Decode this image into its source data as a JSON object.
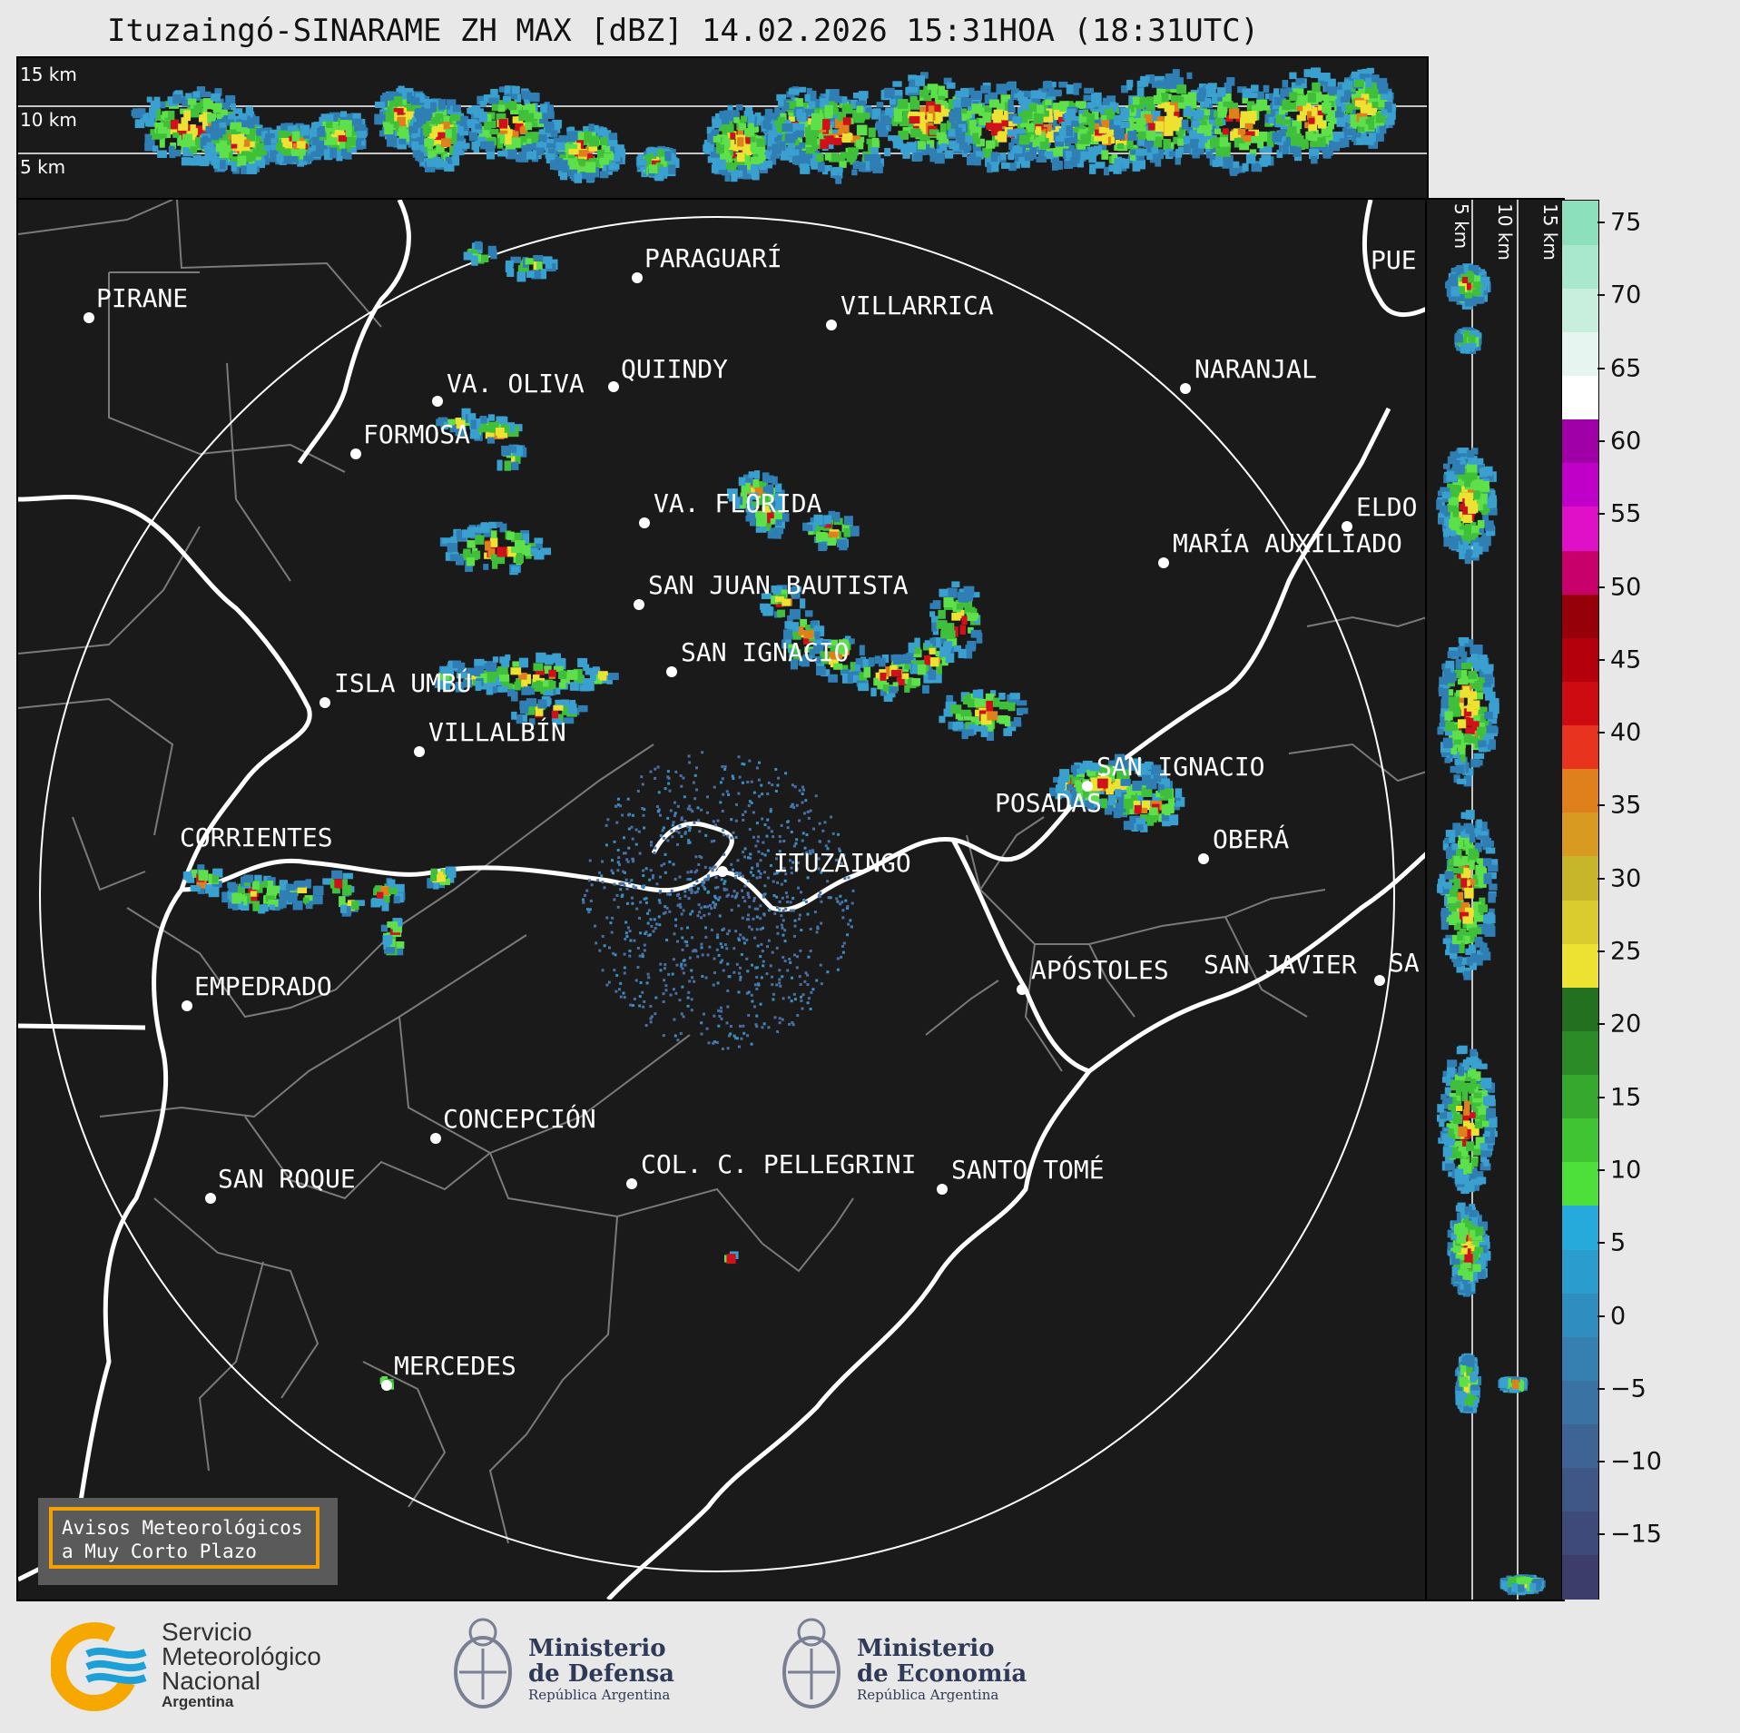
{
  "title": "Ituzaingó-SINARAME ZH MAX [dBZ] 14.02.2026 15:31HOA (18:31UTC)",
  "top_panel": {
    "height_labels": [
      "15 km",
      "10 km",
      "5 km"
    ]
  },
  "side_panel": {
    "height_labels": [
      "5 km",
      "10 km",
      "15 km"
    ]
  },
  "colorbar": {
    "ticks": [
      "75",
      "70",
      "65",
      "60",
      "55",
      "50",
      "45",
      "40",
      "35",
      "30",
      "25",
      "20",
      "15",
      "10",
      "5",
      "0",
      "−5",
      "−10",
      "−15"
    ],
    "colors": [
      "#3d3d6b",
      "#3e4a79",
      "#3f5787",
      "#3d6495",
      "#3a72a3",
      "#3580b1",
      "#2f8ebf",
      "#2a9ccd",
      "#26aadb",
      "#4ee03a",
      "#40c433",
      "#35a82d",
      "#2b8c27",
      "#237021",
      "#ede232",
      "#dacc2e",
      "#c7b62a",
      "#d99a22",
      "#e0801c",
      "#e8331e",
      "#cf0b12",
      "#b4000c",
      "#960008",
      "#c8006b",
      "#e010c8",
      "#c000c8",
      "#a000a8",
      "#ffffff",
      "#e6f5ef",
      "#c8efdd",
      "#a9e8cc",
      "#8de0bc"
    ]
  },
  "map": {
    "range_ring": "on",
    "cities": [
      {
        "name": "PARAGUARÍ"
      },
      {
        "name": "VILLARRICA"
      },
      {
        "name": "PIRANE"
      },
      {
        "name": "QUIINDY"
      },
      {
        "name": "VA. OLIVA"
      },
      {
        "name": "NARANJAL"
      },
      {
        "name": "FORMOSA"
      },
      {
        "name": "PUE"
      },
      {
        "name": "VA. FLORIDA"
      },
      {
        "name": "ELDO"
      },
      {
        "name": "MARÍA AUXILIADO"
      },
      {
        "name": "SAN JUAN BAUTISTA"
      },
      {
        "name": "SAN IGNACIO"
      },
      {
        "name": "ISLA UMBÚ"
      },
      {
        "name": "VILLALBÍN"
      },
      {
        "name": "SAN IGNACIO"
      },
      {
        "name": "POSADAS"
      },
      {
        "name": "CORRIENTES"
      },
      {
        "name": "ITUZAINGÓ"
      },
      {
        "name": "OBERÁ"
      },
      {
        "name": "APÓSTOLES"
      },
      {
        "name": "SAN JAVIER"
      },
      {
        "name": "SA"
      },
      {
        "name": "EMPEDRADO"
      },
      {
        "name": "CONCEPCIÓN"
      },
      {
        "name": "COL. C. PELLEGRINI"
      },
      {
        "name": "SANTO TOMÉ"
      },
      {
        "name": "SAN ROQUE"
      },
      {
        "name": "MERCEDES"
      }
    ]
  },
  "notice": {
    "line1": "Avisos Meteorológicos",
    "line2": "a Muy Corto Plazo"
  },
  "logos": {
    "smn": {
      "line1": "Servicio",
      "line2": "Meteorológico",
      "line3": "Nacional",
      "line4": "Argentina",
      "colors": [
        "#f7a800",
        "#1d9fd8"
      ]
    },
    "defensa": {
      "line1": "Ministerio",
      "line2": "de Defensa",
      "line3": "República Argentina"
    },
    "economia": {
      "line1": "Ministerio",
      "line2": "de Economía",
      "line3": "República Argentina"
    }
  }
}
